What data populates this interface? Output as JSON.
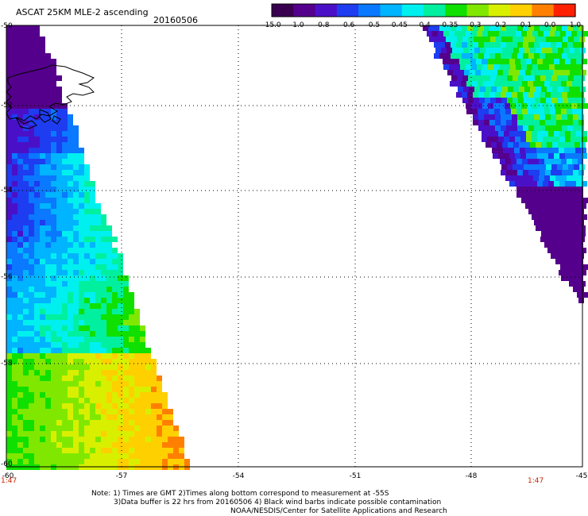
{
  "header": {
    "title": "ASCAT 25KM MLE-2 ascending",
    "date": "20160506"
  },
  "colorbar": {
    "labels": [
      "-15.0",
      "-1.0",
      "-0.8",
      "-0.6",
      "-0.5",
      "-0.45",
      "-0.4",
      "-0.35",
      "-0.3",
      "-0.2",
      "-0.1",
      "0.0",
      "1.0"
    ],
    "colors": [
      "#3a0050",
      "#55008c",
      "#4a10c8",
      "#1e3cf0",
      "#0a78ff",
      "#00b4ff",
      "#00f0f0",
      "#00f0a0",
      "#10e000",
      "#80e800",
      "#d8f000",
      "#ffd000",
      "#ff8000",
      "#ff2000"
    ]
  },
  "axes": {
    "lat_labels": [
      "-50",
      "-52",
      "-54",
      "-56",
      "-58",
      "-60"
    ],
    "lon_labels": [
      "-60",
      "-57",
      "-54",
      "-51",
      "-48",
      "-45"
    ],
    "lat_range": [
      -60,
      -50
    ],
    "lon_range": [
      -60,
      -45
    ]
  },
  "times": {
    "left": "1:47",
    "right": "1:47"
  },
  "notes": {
    "line1": "Note: 1) Times are GMT 2)Times along bottom correspond to measurement at -55S",
    "line2": "3)Data buffer is 22 hrs from 20160506 4) Black wind barbs indicate possible contamination",
    "line3": "NOAA/NESDIS/Center for Satellite Applications and Research"
  }
}
